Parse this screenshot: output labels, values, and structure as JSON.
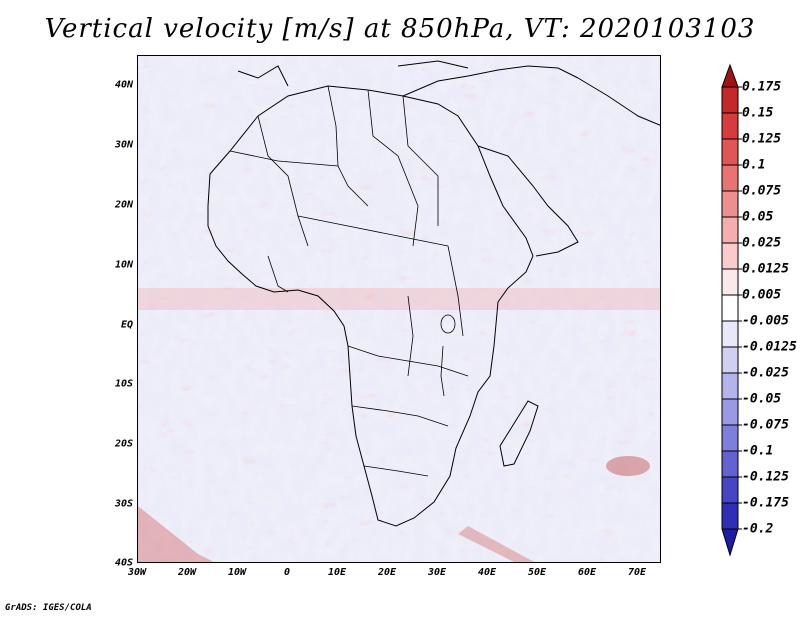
{
  "title": "Vertical velocity [m/s] at 850hPa, VT: 2020103103",
  "credit": "GrADS: IGES/COLA",
  "lat_labels": [
    "40N",
    "30N",
    "20N",
    "10N",
    "EQ",
    "10S",
    "20S",
    "30S",
    "40S"
  ],
  "lon_labels": [
    "30W",
    "20W",
    "10W",
    "0",
    "10E",
    "20E",
    "30E",
    "40E",
    "50E",
    "60E",
    "70E"
  ],
  "colorbar": {
    "levels": [
      "0.175",
      "0.15",
      "0.125",
      "0.1",
      "0.075",
      "0.05",
      "0.025",
      "0.0125",
      "0.005",
      "-0.005",
      "-0.0125",
      "-0.025",
      "-0.05",
      "-0.075",
      "-0.1",
      "-0.125",
      "-0.175",
      "-0.2"
    ],
    "colors": [
      "#a11212",
      "#c42828",
      "#d63c3c",
      "#e05656",
      "#e87373",
      "#ee8f8f",
      "#f4aeae",
      "#f8cccc",
      "#fce8e8",
      "#ffffff",
      "#e8e8f8",
      "#d0d0f2",
      "#b4b4ec",
      "#9a9ae4",
      "#7e7edc",
      "#6262d0",
      "#4646c4",
      "#2e2eb6",
      "#1c1ca6"
    ]
  }
}
